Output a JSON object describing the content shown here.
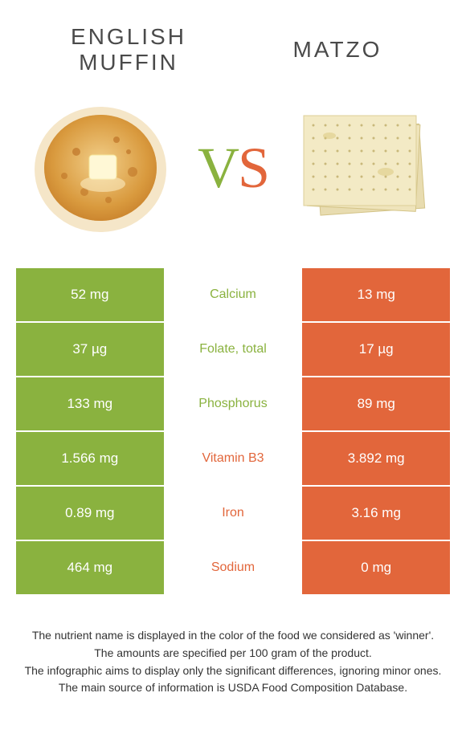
{
  "header": {
    "left_title": "English\nmuffin",
    "right_title": "Matzo",
    "vs_v": "V",
    "vs_s": "S"
  },
  "colors": {
    "green": "#8ab23f",
    "orange": "#e2663b",
    "text": "#333333",
    "white": "#ffffff"
  },
  "table": {
    "rows": [
      {
        "left": "52 mg",
        "label": "Calcium",
        "right": "13 mg",
        "winner": "green"
      },
      {
        "left": "37 µg",
        "label": "Folate, total",
        "right": "17 µg",
        "winner": "green"
      },
      {
        "left": "133 mg",
        "label": "Phosphorus",
        "right": "89 mg",
        "winner": "green"
      },
      {
        "left": "1.566 mg",
        "label": "Vitamin B3",
        "right": "3.892 mg",
        "winner": "orange"
      },
      {
        "left": "0.89 mg",
        "label": "Iron",
        "right": "3.16 mg",
        "winner": "orange"
      },
      {
        "left": "464 mg",
        "label": "Sodium",
        "right": "0 mg",
        "winner": "orange"
      }
    ]
  },
  "footnotes": [
    "The nutrient name is displayed in the color of the food we considered as 'winner'.",
    "The amounts are specified per 100 gram of the product.",
    "The infographic aims to display only the significant differences, ignoring minor ones.",
    "The main source of information is USDA Food Composition Database."
  ]
}
